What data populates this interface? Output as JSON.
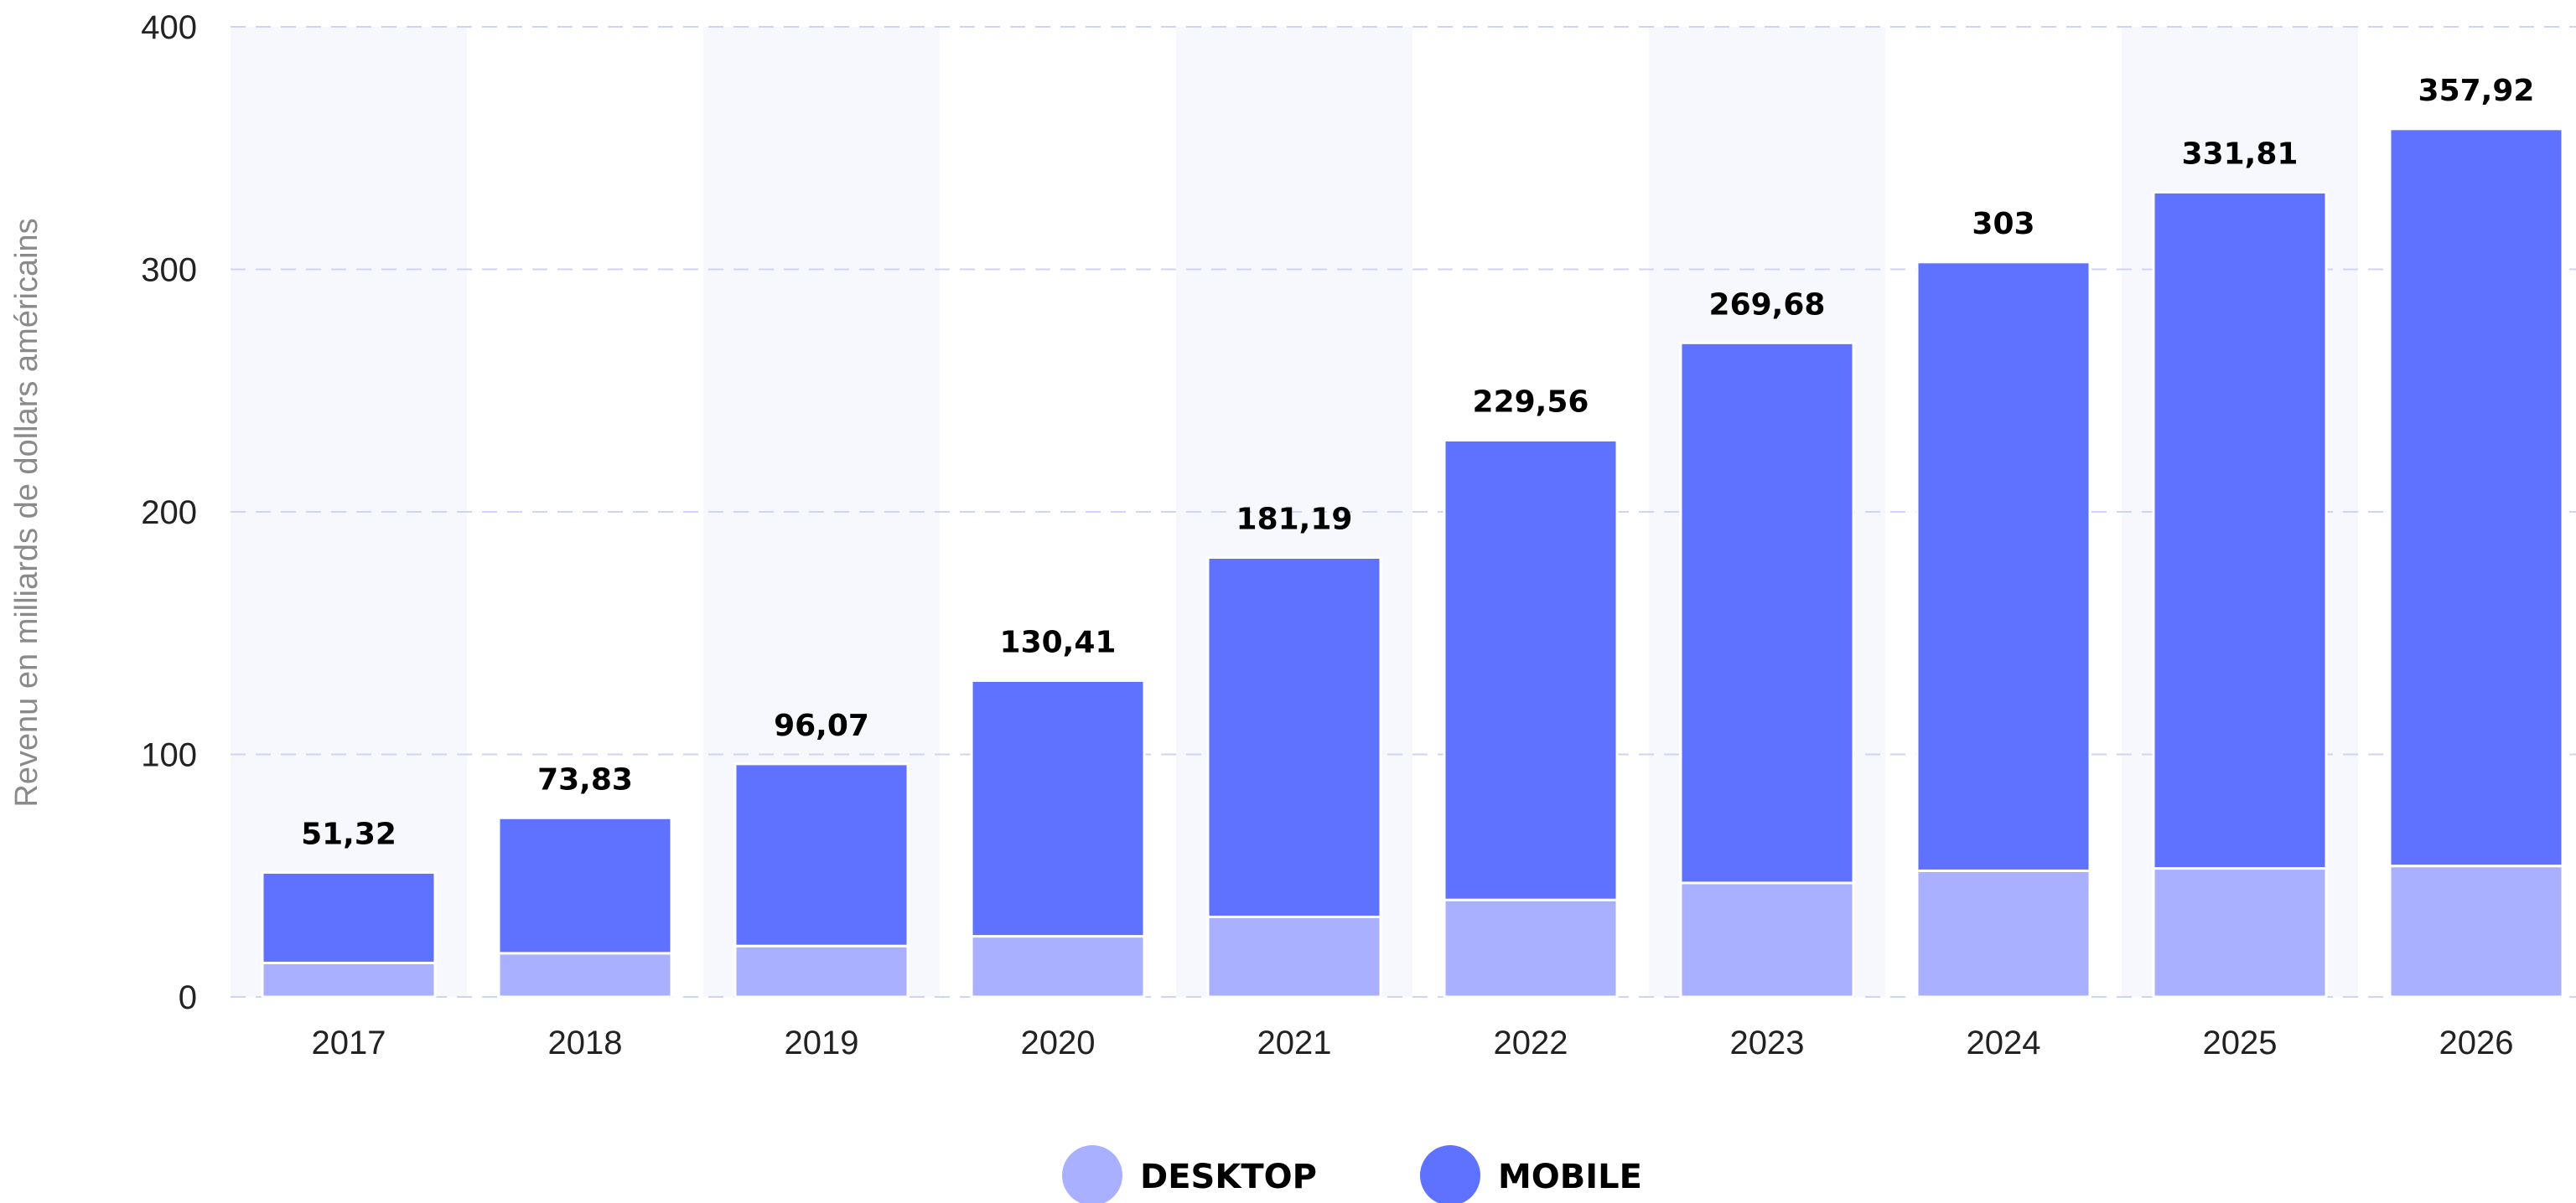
{
  "chart_data": {
    "type": "bar",
    "stacked": true,
    "categories": [
      "2017",
      "2018",
      "2019",
      "2020",
      "2021",
      "2022",
      "2023",
      "2024",
      "2025",
      "2026"
    ],
    "series": [
      {
        "name": "DESKTOP",
        "color": "#a8b0ff",
        "values": [
          14,
          18,
          21,
          25,
          33,
          40,
          47,
          52,
          53,
          54
        ]
      },
      {
        "name": "MOBILE",
        "color": "#5e72ff",
        "values": [
          37.32,
          55.83,
          75.07,
          105.41,
          148.19,
          189.56,
          222.68,
          251,
          278.81,
          303.92
        ]
      }
    ],
    "totals": [
      "51,32",
      "73,83",
      "96,07",
      "130,41",
      "181,19",
      "229,56",
      "269,68",
      "303",
      "331,81",
      "357,92"
    ],
    "total_values": [
      51.32,
      73.83,
      96.07,
      130.41,
      181.19,
      229.56,
      269.68,
      303,
      331.81,
      357.92
    ],
    "y_ticks": [
      "0",
      "100",
      "200",
      "300",
      "400"
    ],
    "ylim": [
      0,
      400
    ],
    "ylabel": "Revenu en milliards de dollars américains",
    "xlabel": "",
    "grid": true,
    "legend_position": "bottom-center",
    "band_color": "#f7f8fd",
    "grid_color": "#cfd3f5"
  }
}
